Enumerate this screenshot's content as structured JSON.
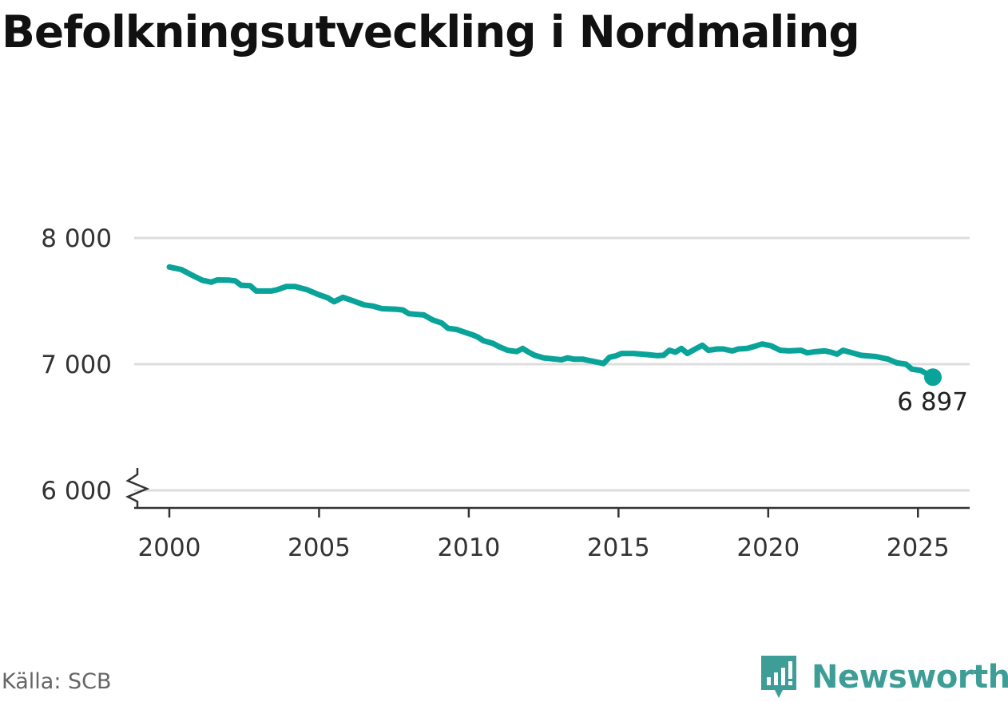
{
  "title": "Befolkningsutveckling i Nordmaling",
  "source": "Källa: SCB",
  "brand": {
    "name": "Newsworthy",
    "icon": "bar-chart-speech-bubble-icon"
  },
  "colors": {
    "line": "#0aa39a",
    "grid": "#dddddd",
    "axis": "#333333",
    "brand": "#3e9e97"
  },
  "chart_data": {
    "type": "line",
    "title": "Befolkningsutveckling i Nordmaling",
    "xlabel": "",
    "ylabel": "",
    "xlim": [
      2000,
      2025.5
    ],
    "ylim": [
      6000,
      8000
    ],
    "y_axis_break": true,
    "x_ticks": [
      2000,
      2005,
      2010,
      2015,
      2020,
      2025
    ],
    "x_tick_labels": [
      "2000",
      "2005",
      "2010",
      "2015",
      "2020",
      "2025"
    ],
    "y_ticks": [
      6000,
      7000,
      8000
    ],
    "y_tick_labels": [
      "6 000",
      "7 000",
      "8 000"
    ],
    "grid": true,
    "end_label": "6 897",
    "series": [
      {
        "values": [
          [
            2000.0,
            7770
          ],
          [
            2000.4,
            7750
          ],
          [
            2000.8,
            7700
          ],
          [
            2001.1,
            7665
          ],
          [
            2001.4,
            7650
          ],
          [
            2001.6,
            7668
          ],
          [
            2002.0,
            7666
          ],
          [
            2002.2,
            7660
          ],
          [
            2002.4,
            7625
          ],
          [
            2002.7,
            7622
          ],
          [
            2002.9,
            7580
          ],
          [
            2003.4,
            7580
          ],
          [
            2003.6,
            7590
          ],
          [
            2003.9,
            7615
          ],
          [
            2004.2,
            7615
          ],
          [
            2004.6,
            7590
          ],
          [
            2005.0,
            7550
          ],
          [
            2005.3,
            7525
          ],
          [
            2005.5,
            7495
          ],
          [
            2005.8,
            7530
          ],
          [
            2006.1,
            7505
          ],
          [
            2006.5,
            7470
          ],
          [
            2006.8,
            7460
          ],
          [
            2007.1,
            7440
          ],
          [
            2007.6,
            7435
          ],
          [
            2007.8,
            7430
          ],
          [
            2008.0,
            7400
          ],
          [
            2008.5,
            7390
          ],
          [
            2008.8,
            7350
          ],
          [
            2009.1,
            7325
          ],
          [
            2009.3,
            7285
          ],
          [
            2009.6,
            7275
          ],
          [
            2009.9,
            7250
          ],
          [
            2010.1,
            7235
          ],
          [
            2010.3,
            7215
          ],
          [
            2010.5,
            7185
          ],
          [
            2010.8,
            7165
          ],
          [
            2011.0,
            7140
          ],
          [
            2011.3,
            7110
          ],
          [
            2011.6,
            7100
          ],
          [
            2011.8,
            7125
          ],
          [
            2012.0,
            7095
          ],
          [
            2012.2,
            7070
          ],
          [
            2012.5,
            7050
          ],
          [
            2012.9,
            7040
          ],
          [
            2013.1,
            7035
          ],
          [
            2013.3,
            7050
          ],
          [
            2013.5,
            7040
          ],
          [
            2013.8,
            7040
          ],
          [
            2014.0,
            7030
          ],
          [
            2014.3,
            7015
          ],
          [
            2014.5,
            7005
          ],
          [
            2014.7,
            7055
          ],
          [
            2014.9,
            7065
          ],
          [
            2015.1,
            7085
          ],
          [
            2015.5,
            7085
          ],
          [
            2016.0,
            7075
          ],
          [
            2016.3,
            7068
          ],
          [
            2016.5,
            7070
          ],
          [
            2016.7,
            7110
          ],
          [
            2016.9,
            7095
          ],
          [
            2017.1,
            7125
          ],
          [
            2017.3,
            7085
          ],
          [
            2017.6,
            7125
          ],
          [
            2017.8,
            7150
          ],
          [
            2018.0,
            7110
          ],
          [
            2018.3,
            7120
          ],
          [
            2018.5,
            7120
          ],
          [
            2018.8,
            7105
          ],
          [
            2019.0,
            7120
          ],
          [
            2019.3,
            7125
          ],
          [
            2019.6,
            7145
          ],
          [
            2019.8,
            7160
          ],
          [
            2020.1,
            7145
          ],
          [
            2020.4,
            7110
          ],
          [
            2020.7,
            7105
          ],
          [
            2021.1,
            7110
          ],
          [
            2021.3,
            7090
          ],
          [
            2021.6,
            7100
          ],
          [
            2021.9,
            7105
          ],
          [
            2022.1,
            7095
          ],
          [
            2022.3,
            7080
          ],
          [
            2022.5,
            7110
          ],
          [
            2022.8,
            7090
          ],
          [
            2023.1,
            7070
          ],
          [
            2023.6,
            7060
          ],
          [
            2024.0,
            7040
          ],
          [
            2024.3,
            7010
          ],
          [
            2024.6,
            7000
          ],
          [
            2024.8,
            6960
          ],
          [
            2025.1,
            6950
          ],
          [
            2025.5,
            6897
          ]
        ]
      }
    ]
  }
}
